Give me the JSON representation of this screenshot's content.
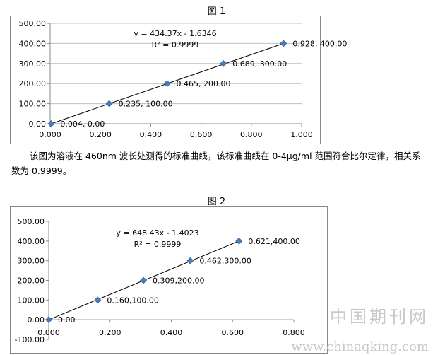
{
  "figure1_title": "图 1",
  "figure2_title": "图 2",
  "caption": "该图为溶液在 460nm 波长处测得的标准曲线，该标准曲线在 0-4μg/ml 范围符合比尔定律，相关系数为 0.9999。",
  "watermark": {
    "cn": "中国期刊网",
    "url": "www.chinaqking.com"
  },
  "chart_data": [
    {
      "type": "scatter",
      "trendline": true,
      "x": [
        0.004,
        0.235,
        0.465,
        0.689,
        0.928
      ],
      "y": [
        0,
        100,
        200,
        300,
        400
      ],
      "point_labels": [
        "0.004, 0.00",
        "0.235, 100.00",
        "0.465, 200.00",
        "0.689, 300.00",
        "0.928, 400.00"
      ],
      "xlim": [
        0,
        1
      ],
      "ylim": [
        0,
        500
      ],
      "xticks": [
        "0.000",
        "0.200",
        "0.400",
        "0.600",
        "0.800",
        "1.000"
      ],
      "yticks": [
        "0.00",
        "100.00",
        "200.00",
        "300.00",
        "400.00",
        "500.00"
      ],
      "equation": "y = 434.37x - 1.6346",
      "r2": "R² = 0.9999",
      "grid": true,
      "marker_color": "#4a7ebb"
    },
    {
      "type": "scatter",
      "trendline": true,
      "x": [
        0,
        0.16,
        0.309,
        0.462,
        0.621
      ],
      "y": [
        0,
        100,
        200,
        300,
        400
      ],
      "point_labels": [
        "0.00",
        "0.160,100.00",
        "0.309,200.00",
        "0.462,300.00",
        "0.621,400.00"
      ],
      "xlim": [
        0,
        0.8
      ],
      "ylim": [
        -100,
        500
      ],
      "xticks": [
        "0.000",
        "0.200",
        "0.400",
        "0.600",
        "0.800"
      ],
      "yticks": [
        "-100.00",
        "0.00",
        "100.00",
        "200.00",
        "300.00",
        "400.00",
        "500.00"
      ],
      "equation": "y = 648.43x - 1.4023",
      "r2": "R² = 0.9999",
      "grid": false,
      "marker_color": "#4a7ebb"
    }
  ]
}
